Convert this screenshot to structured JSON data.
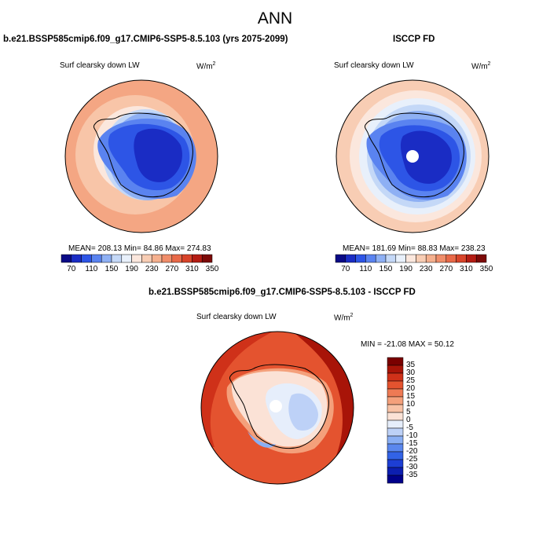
{
  "page": {
    "title": "ANN"
  },
  "panels": [
    {
      "title": "b.e21.BSSP585cmip6.f09_g17.CMIP6-SSP5-8.5.103 (yrs 2075-2099)",
      "variable": "Surf clearsky down LW",
      "units_base": "W/m",
      "units_exp": "2",
      "stats": "MEAN= 208.13  Min=  84.86  Max= 274.83",
      "colorbar_labels": [
        "70",
        "110",
        "150",
        "190",
        "230",
        "270",
        "310",
        "350"
      ]
    },
    {
      "title": "ISCCP FD",
      "variable": "Surf clearsky down LW",
      "units_base": "W/m",
      "units_exp": "2",
      "stats": "MEAN= 181.69  Min=  88.83  Max= 238.23",
      "colorbar_labels": [
        "70",
        "110",
        "150",
        "190",
        "230",
        "270",
        "310",
        "350"
      ]
    },
    {
      "title": "b.e21.BSSP585cmip6.f09_g17.CMIP6-SSP5-8.5.103 - ISCCP FD",
      "variable": "Surf clearsky down LW",
      "units_base": "W/m",
      "units_exp": "2",
      "stats": "MIN = -21.08  MAX =  50.12",
      "colorbar_labels": [
        "35",
        "30",
        "25",
        "20",
        "15",
        "10",
        "5",
        "0",
        "-5",
        "-10",
        "-15",
        "-20",
        "-25",
        "-30",
        "-35"
      ]
    }
  ],
  "colors": {
    "abs_scale": [
      "#0a0a86",
      "#1a2cc4",
      "#2d55e6",
      "#5a83f0",
      "#8eb0f4",
      "#c4d8f7",
      "#e8f0fb",
      "#fbe7dd",
      "#f8cdb4",
      "#f5b08e",
      "#f08d6a",
      "#e86948",
      "#d8442a",
      "#b41c13",
      "#7c0a08"
    ],
    "diff_scale": [
      "#00008a",
      "#0c1eb0",
      "#1d3ed4",
      "#3263e6",
      "#5a87ee",
      "#8aaff4",
      "#bdd1f7",
      "#e6eefb",
      "#fbe2d6",
      "#f8c2a6",
      "#f4a07b",
      "#ee7a54",
      "#e4532f",
      "#cf3119",
      "#a81408",
      "#7a0000"
    ]
  }
}
